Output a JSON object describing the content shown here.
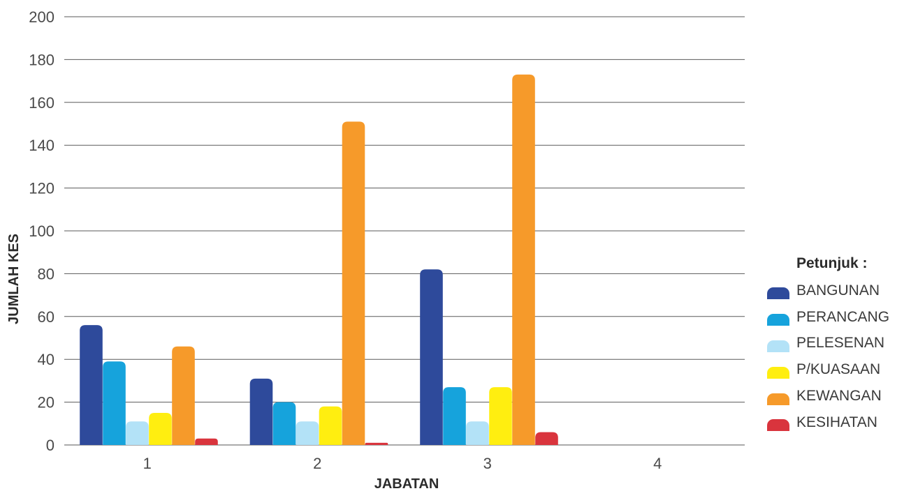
{
  "chart_data": {
    "type": "bar",
    "xlabel": "JABATAN",
    "ylabel": "JUMLAH KES",
    "ylim": [
      0,
      200
    ],
    "yticks": [
      0,
      20,
      40,
      60,
      80,
      100,
      120,
      140,
      160,
      180,
      200
    ],
    "grid": true,
    "legend_position": "right",
    "legend_title": "Petunjuk :",
    "categories": [
      "1",
      "2",
      "3",
      "4"
    ],
    "series": [
      {
        "name": "BANGUNAN",
        "color": "#2e4a9b",
        "values": [
          56,
          31,
          82,
          0
        ]
      },
      {
        "name": "PERANCANG",
        "color": "#16a3dc",
        "values": [
          39,
          20,
          27,
          0
        ]
      },
      {
        "name": "PELESENAN",
        "color": "#b3e2f7",
        "values": [
          11,
          11,
          11,
          0
        ]
      },
      {
        "name": "P/KUASAAN",
        "color": "#ffee10",
        "values": [
          15,
          18,
          27,
          0
        ]
      },
      {
        "name": "KEWANGAN",
        "color": "#f69a2a",
        "values": [
          46,
          151,
          173,
          0
        ]
      },
      {
        "name": "KESIHATAN",
        "color": "#d9343d",
        "values": [
          3,
          1,
          6,
          0
        ]
      }
    ]
  }
}
